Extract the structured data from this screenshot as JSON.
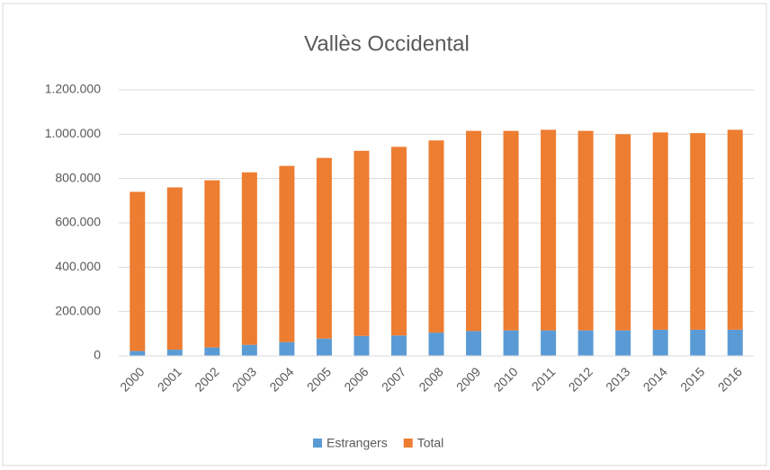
{
  "chart_data": {
    "type": "stacked-bar",
    "title": "Vallès Occidental",
    "categories": [
      "2000",
      "2001",
      "2002",
      "2003",
      "2004",
      "2005",
      "2006",
      "2007",
      "2008",
      "2009",
      "2010",
      "2011",
      "2012",
      "2013",
      "2014",
      "2015",
      "2016"
    ],
    "series": [
      {
        "name": "Estrangers",
        "color": "#5b9bd5",
        "values": [
          22000,
          28000,
          38000,
          50000,
          62000,
          78000,
          90000,
          92000,
          105000,
          112000,
          115000,
          115000,
          115000,
          115000,
          118000,
          118000,
          118000
        ]
      },
      {
        "name": "Total",
        "color": "#ed7d31",
        "values": [
          718000,
          732000,
          754000,
          778000,
          795000,
          815000,
          835000,
          851000,
          867000,
          903000,
          900000,
          905000,
          900000,
          885000,
          890000,
          887000,
          902000
        ]
      }
    ],
    "ylim": [
      0,
      1200000
    ],
    "yticks": [
      0,
      {
        "value": 200000,
        "label": "200.000"
      },
      {
        "value": 400000,
        "label": "400.000"
      },
      {
        "value": 600000,
        "label": "600.000"
      },
      {
        "value": 800000,
        "label": "800.000"
      },
      {
        "value": 1000000,
        "label": "1.000.000"
      },
      {
        "value": 1200000,
        "label": "1.200.000"
      }
    ],
    "grid": true,
    "legend": "bottom"
  }
}
